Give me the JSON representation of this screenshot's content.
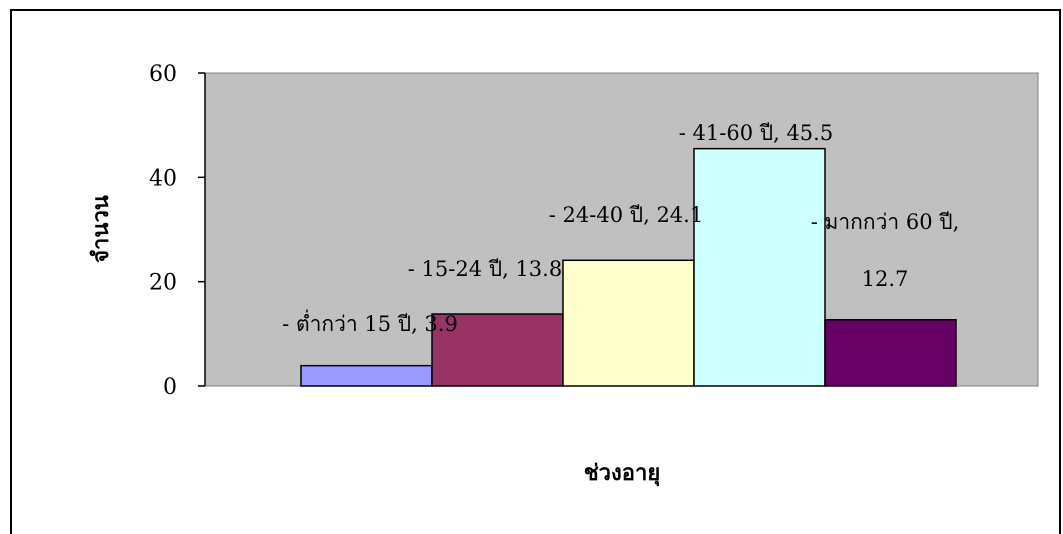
{
  "chart_data": {
    "type": "bar",
    "xlabel": "ช่วงอายุ",
    "ylabel": "จำนวน",
    "ylim": [
      0,
      60
    ],
    "yticks": [
      0,
      20,
      40,
      60
    ],
    "grid": false,
    "legend": "none",
    "plot_background": "#c0c0c0",
    "series": [
      {
        "name": "- ต่ำกว่า 15 ปี",
        "value": 3.9,
        "label": "- ต่ำกว่า 15 ปี, 3.9",
        "color": "#9999ff"
      },
      {
        "name": "- 15-24 ปี",
        "value": 13.8,
        "label": "- 15-24 ปี, 13.8",
        "color": "#993366"
      },
      {
        "name": "- 24-40 ปี",
        "value": 24.1,
        "label": "- 24-40 ปี, 24.1",
        "color": "#ffffcc"
      },
      {
        "name": "- 41-60 ปี",
        "value": 45.5,
        "label": "- 41-60 ปี, 45.5",
        "color": "#ccffff"
      },
      {
        "name": "- มากกว่า 60 ปี",
        "value": 12.7,
        "label_lines": [
          "- มากกว่า 60 ปี,",
          "12.7"
        ],
        "color": "#660066"
      }
    ]
  }
}
